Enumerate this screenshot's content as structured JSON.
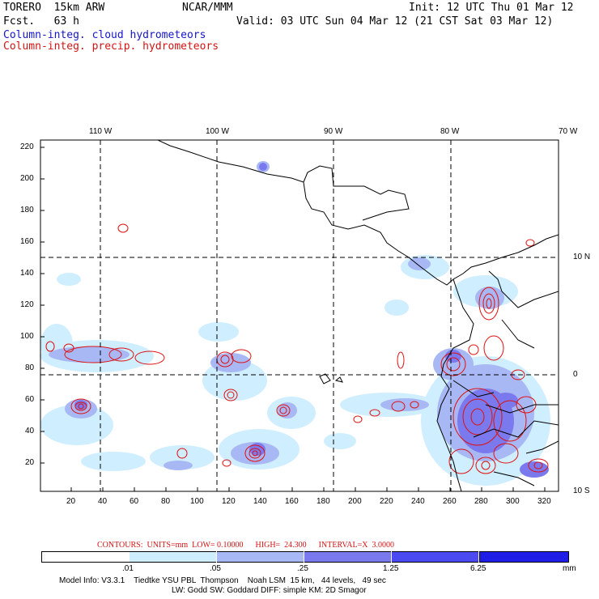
{
  "header": {
    "model": "TORERO  15km ARW",
    "forecast": "Fcst.   63 h",
    "center": "NCAR/MMM",
    "init": "Init: 12 UTC Thu 01 Mar 12",
    "valid": "Valid: 03 UTC Sun 04 Mar 12 (21 CST Sat 03 Mar 12)",
    "field1": "Column-integ. cloud hydrometeors",
    "field2": "Column-integ. precip. hydrometeors"
  },
  "map": {
    "top_lon_labels": [
      "110 W",
      "100 W",
      "90 W",
      "80 W",
      "70 W"
    ],
    "right_lat_labels": [
      "10 N",
      "0",
      "10 S"
    ],
    "left_y_ticks": [
      "220",
      "200",
      "180",
      "160",
      "140",
      "120",
      "100",
      "80",
      "60",
      "40",
      "20"
    ],
    "bottom_x_ticks": [
      "20",
      "40",
      "60",
      "80",
      "100",
      "120",
      "140",
      "160",
      "180",
      "200",
      "220",
      "240",
      "260",
      "280",
      "300",
      "320"
    ],
    "colors": {
      "coast": "#000000",
      "grid": "#000000",
      "cloud_light": "#cfeeff",
      "cloud_mid": "#a8b8f4",
      "cloud_dark": "#6a6ae6",
      "precip": "#e01010"
    }
  },
  "footer": {
    "contours": "CONTOURS:  UNITS=mm  LOW= 0.10000      HIGH=  24.300      INTERVAL=X  3.0000",
    "legend_labels": [
      ".01",
      ".05",
      ".25",
      "1.25",
      "6.25"
    ],
    "legend_unit": "mm",
    "legend_colors": [
      "#ffffff",
      "#cfeeff",
      "#a8b8f4",
      "#7a7aee",
      "#4a4af0",
      "#1e1ee6"
    ],
    "model_info_1": "Model Info: V3.3.1    Tiedtke YSU PBL  Thompson    Noah LSM  15 km,   44 levels,   49 sec",
    "model_info_2": "LW: Godd SW: Goddard DIFF: simple KM: 2D Smagor"
  }
}
